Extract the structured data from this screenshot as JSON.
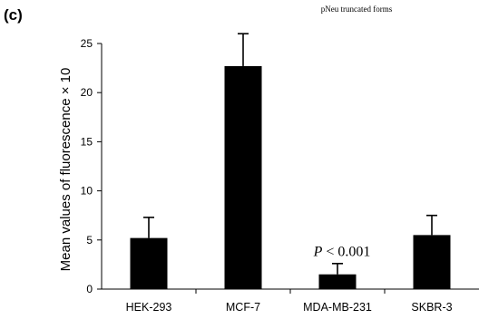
{
  "panel_label": "(c)",
  "chart_data": {
    "type": "bar",
    "title": "pNeu truncated forms",
    "categories": [
      "HEK-293",
      "MCF-7",
      "MDA-MB-231",
      "SKBR-3"
    ],
    "values": [
      5.2,
      22.7,
      1.5,
      5.5
    ],
    "errors": [
      2.1,
      3.3,
      1.1,
      2.0
    ],
    "ylabel": "Mean values of fluorescence  × 10",
    "ylim": [
      0,
      25
    ],
    "yticks": [
      "0",
      "5",
      "10",
      "15",
      "20",
      "25"
    ],
    "xlabel": "",
    "grid": false,
    "bar_color": "#000000",
    "annotations": [
      {
        "category": "MDA-MB-231",
        "y": 2.8,
        "italic_part": "P",
        "rest": " < 0.001"
      }
    ]
  }
}
